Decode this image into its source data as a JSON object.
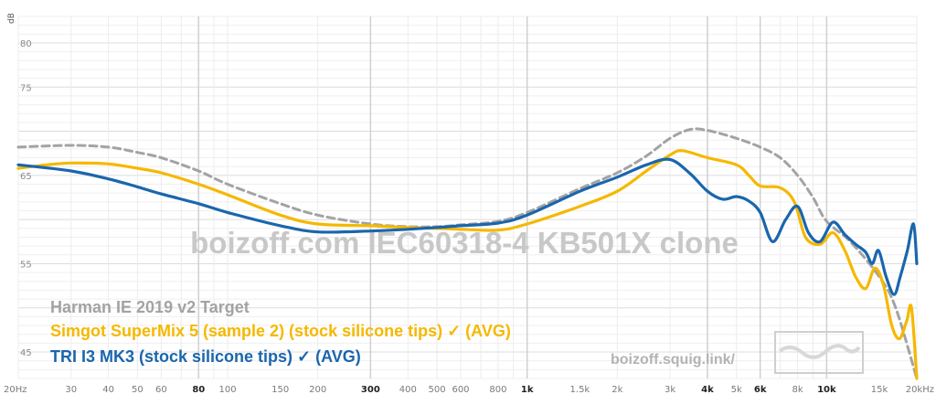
{
  "chart_data": {
    "type": "line",
    "watermark": "boizoff.com IEC60318-4 KB501X clone",
    "site_label": "boizoff.squig.link/",
    "y_unit": "dB",
    "ylim": [
      42,
      83
    ],
    "xlim": [
      20,
      20000
    ],
    "x_scale": "log",
    "grid": true,
    "legend_position": "bottom-left",
    "y_ticks": [
      {
        "value": 80,
        "label": "80"
      },
      {
        "value": 75,
        "label": "75"
      },
      {
        "value": 65,
        "label": "65"
      },
      {
        "value": 55,
        "label": "55"
      },
      {
        "value": 45,
        "label": "45"
      }
    ],
    "x_ticks": [
      {
        "value": 20,
        "label": "20Hz",
        "major": false
      },
      {
        "value": 30,
        "label": "30",
        "major": false
      },
      {
        "value": 40,
        "label": "40",
        "major": false
      },
      {
        "value": 50,
        "label": "50",
        "major": false
      },
      {
        "value": 60,
        "label": "60",
        "major": false
      },
      {
        "value": 80,
        "label": "80",
        "major": true
      },
      {
        "value": 100,
        "label": "100",
        "major": false
      },
      {
        "value": 150,
        "label": "150",
        "major": false
      },
      {
        "value": 200,
        "label": "200",
        "major": false
      },
      {
        "value": 300,
        "label": "300",
        "major": true
      },
      {
        "value": 400,
        "label": "400",
        "major": false
      },
      {
        "value": 500,
        "label": "500",
        "major": false
      },
      {
        "value": 600,
        "label": "600",
        "major": false
      },
      {
        "value": 800,
        "label": "800",
        "major": false
      },
      {
        "value": 1000,
        "label": "1k",
        "major": true
      },
      {
        "value": 1500,
        "label": "1.5k",
        "major": false
      },
      {
        "value": 2000,
        "label": "2k",
        "major": false
      },
      {
        "value": 3000,
        "label": "3k",
        "major": false
      },
      {
        "value": 4000,
        "label": "4k",
        "major": true
      },
      {
        "value": 5000,
        "label": "5k",
        "major": false
      },
      {
        "value": 6000,
        "label": "6k",
        "major": true
      },
      {
        "value": 8000,
        "label": "8k",
        "major": false
      },
      {
        "value": 10000,
        "label": "10k",
        "major": true
      },
      {
        "value": 15000,
        "label": "15k",
        "major": false
      },
      {
        "value": 20000,
        "label": "20kHz",
        "major": false
      }
    ],
    "series": [
      {
        "name": "Harman IE 2019 v2 Target",
        "color": "#a3a3a3",
        "dashed": true,
        "points": [
          [
            20,
            68.2
          ],
          [
            30,
            68.4
          ],
          [
            40,
            68.2
          ],
          [
            50,
            67.6
          ],
          [
            60,
            67
          ],
          [
            80,
            65.5
          ],
          [
            100,
            64
          ],
          [
            150,
            61.8
          ],
          [
            200,
            60.5
          ],
          [
            300,
            59.5
          ],
          [
            400,
            59.2
          ],
          [
            500,
            59.2
          ],
          [
            600,
            59.4
          ],
          [
            800,
            59.8
          ],
          [
            1000,
            60.8
          ],
          [
            1500,
            63.5
          ],
          [
            2000,
            65.3
          ],
          [
            2500,
            67.2
          ],
          [
            3000,
            69.2
          ],
          [
            3500,
            70.2
          ],
          [
            4000,
            70.1
          ],
          [
            5000,
            69.2
          ],
          [
            6000,
            68.2
          ],
          [
            7000,
            67
          ],
          [
            8000,
            65
          ],
          [
            9000,
            62.5
          ],
          [
            10000,
            59.8
          ],
          [
            12000,
            57.5
          ],
          [
            15000,
            53.5
          ],
          [
            17000,
            50
          ],
          [
            20000,
            42
          ]
        ]
      },
      {
        "name": "Simgot SuperMix 5 (sample 2) (stock silicone tips) ✓ (AVG)",
        "color": "#f5b800",
        "dashed": false,
        "points": [
          [
            20,
            65.8
          ],
          [
            25,
            66.2
          ],
          [
            30,
            66.4
          ],
          [
            40,
            66.3
          ],
          [
            50,
            65.8
          ],
          [
            60,
            65.3
          ],
          [
            80,
            64
          ],
          [
            100,
            62.8
          ],
          [
            150,
            60.5
          ],
          [
            200,
            59.5
          ],
          [
            300,
            59.3
          ],
          [
            400,
            59.1
          ],
          [
            500,
            59
          ],
          [
            600,
            58.9
          ],
          [
            800,
            58.8
          ],
          [
            1000,
            59.5
          ],
          [
            1500,
            61.5
          ],
          [
            2000,
            63.2
          ],
          [
            2500,
            65.5
          ],
          [
            3000,
            67.3
          ],
          [
            3300,
            67.8
          ],
          [
            4000,
            67
          ],
          [
            5000,
            66.2
          ],
          [
            5500,
            65
          ],
          [
            6000,
            63.8
          ],
          [
            7000,
            63.6
          ],
          [
            7800,
            62
          ],
          [
            8500,
            58
          ],
          [
            9500,
            57.2
          ],
          [
            10500,
            58.5
          ],
          [
            11500,
            56.5
          ],
          [
            12500,
            53.5
          ],
          [
            13500,
            52.2
          ],
          [
            14500,
            54.5
          ],
          [
            15500,
            52.5
          ],
          [
            16500,
            48
          ],
          [
            17500,
            46.5
          ],
          [
            18500,
            48.5
          ],
          [
            19200,
            50
          ],
          [
            20000,
            42
          ]
        ]
      },
      {
        "name": "TRI I3 MK3 (stock silicone tips) ✓ (AVG)",
        "color": "#1a66ad",
        "dashed": false,
        "points": [
          [
            20,
            66.2
          ],
          [
            30,
            65.5
          ],
          [
            40,
            64.6
          ],
          [
            50,
            63.7
          ],
          [
            60,
            62.9
          ],
          [
            80,
            61.8
          ],
          [
            100,
            60.8
          ],
          [
            150,
            59.3
          ],
          [
            200,
            58.6
          ],
          [
            300,
            58.7
          ],
          [
            400,
            58.9
          ],
          [
            500,
            59.1
          ],
          [
            600,
            59.3
          ],
          [
            800,
            59.6
          ],
          [
            1000,
            60.5
          ],
          [
            1500,
            63.2
          ],
          [
            2000,
            64.8
          ],
          [
            2500,
            66.2
          ],
          [
            3000,
            66.8
          ],
          [
            3500,
            65.2
          ],
          [
            4000,
            63.2
          ],
          [
            4500,
            62.3
          ],
          [
            5000,
            62.6
          ],
          [
            5500,
            62.1
          ],
          [
            6000,
            60.8
          ],
          [
            6600,
            57.5
          ],
          [
            7300,
            60
          ],
          [
            8000,
            61.5
          ],
          [
            8700,
            58.5
          ],
          [
            9500,
            57.5
          ],
          [
            10500,
            59.7
          ],
          [
            11500,
            58.3
          ],
          [
            12500,
            57.2
          ],
          [
            13500,
            56.3
          ],
          [
            14200,
            55
          ],
          [
            14900,
            56.5
          ],
          [
            15800,
            53.5
          ],
          [
            16800,
            51.5
          ],
          [
            17600,
            53.5
          ],
          [
            18600,
            56.5
          ],
          [
            19500,
            59.5
          ],
          [
            20000,
            55
          ]
        ]
      }
    ]
  }
}
